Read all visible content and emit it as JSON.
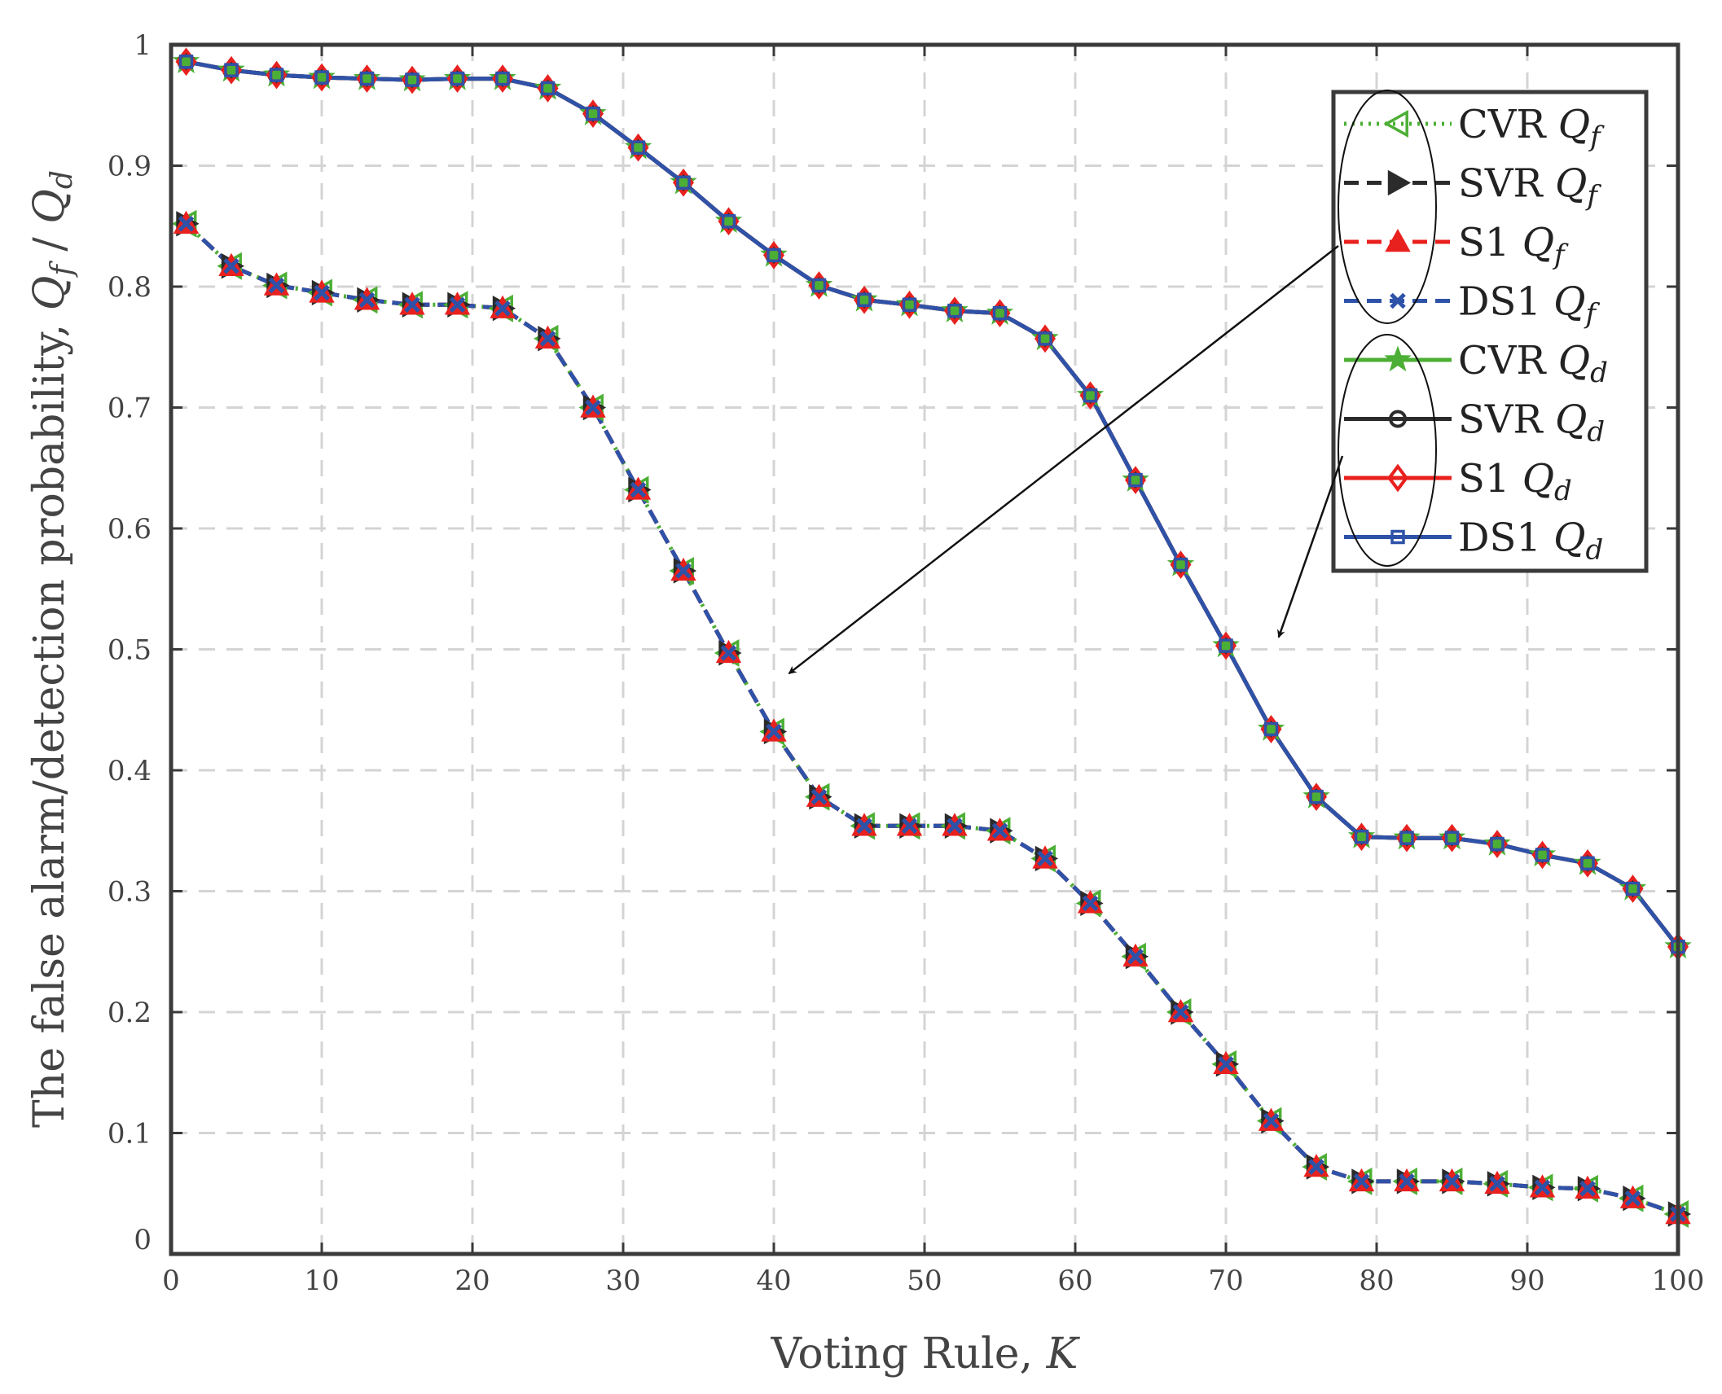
{
  "chart_data": {
    "type": "line",
    "title": "",
    "xlabel": "Voting Rule, ",
    "xlabel_var": "K",
    "ylabel": "The false alarm/detection probability, ",
    "ylabel_var1": "Q",
    "ylabel_sub1": "f",
    "ylabel_sep": " / ",
    "ylabel_var2": "Q",
    "ylabel_sub2": "d",
    "xlim": [
      0,
      100
    ],
    "ylim": [
      0,
      1
    ],
    "xticks": [
      0,
      10,
      20,
      30,
      40,
      50,
      60,
      70,
      80,
      90,
      100
    ],
    "yticks": [
      0,
      0.1,
      0.2,
      0.3,
      0.4,
      0.5,
      0.6,
      0.7,
      0.8,
      0.9,
      1
    ],
    "ytick_labels": [
      "0",
      "0.1",
      "0.2",
      "0.3",
      "0.4",
      "0.5",
      "0.6",
      "0.7",
      "0.8",
      "0.9",
      "1"
    ],
    "grid": true,
    "legend_position": "top-right",
    "x": [
      1,
      4,
      7,
      10,
      13,
      16,
      19,
      22,
      25,
      28,
      31,
      34,
      37,
      40,
      43,
      46,
      49,
      52,
      55,
      58,
      61,
      64,
      67,
      70,
      73,
      76,
      79,
      82,
      85,
      88,
      91,
      94,
      97,
      100
    ],
    "qf_values": [
      0.852,
      0.817,
      0.801,
      0.795,
      0.789,
      0.785,
      0.785,
      0.782,
      0.757,
      0.7,
      0.632,
      0.565,
      0.497,
      0.432,
      0.378,
      0.354,
      0.354,
      0.354,
      0.35,
      0.327,
      0.29,
      0.246,
      0.2,
      0.157,
      0.11,
      0.072,
      0.06,
      0.06,
      0.06,
      0.058,
      0.055,
      0.054,
      0.046,
      0.033
    ],
    "qd_values": [
      0.986,
      0.979,
      0.975,
      0.973,
      0.972,
      0.971,
      0.972,
      0.972,
      0.964,
      0.943,
      0.915,
      0.886,
      0.854,
      0.826,
      0.801,
      0.789,
      0.785,
      0.78,
      0.778,
      0.757,
      0.71,
      0.64,
      0.57,
      0.503,
      0.434,
      0.378,
      0.345,
      0.344,
      0.344,
      0.339,
      0.33,
      0.323,
      0.302,
      0.254
    ],
    "series": [
      {
        "name": "CVR",
        "sub": "f",
        "group": "Qf",
        "color": "#4caf35",
        "dash": "3,7",
        "marker": "triangle-left"
      },
      {
        "name": "SVR",
        "sub": "f",
        "group": "Qf",
        "color": "#2b2b2b",
        "dash": "18,10",
        "marker": "triangle-right"
      },
      {
        "name": "S1",
        "sub": "f",
        "group": "Qf",
        "color": "#e8201e",
        "dash": "18,10",
        "marker": "triangle-up"
      },
      {
        "name": "DS1",
        "sub": "f",
        "group": "Qf",
        "color": "#2e52a8",
        "dash": "18,10",
        "marker": "x"
      },
      {
        "name": "CVR",
        "sub": "d",
        "group": "Qd",
        "color": "#4caf35",
        "dash": "",
        "marker": "star"
      },
      {
        "name": "SVR",
        "sub": "d",
        "group": "Qd",
        "color": "#2b2b2b",
        "dash": "",
        "marker": "circle"
      },
      {
        "name": "S1",
        "sub": "d",
        "group": "Qd",
        "color": "#e8201e",
        "dash": "",
        "marker": "diamond"
      },
      {
        "name": "DS1",
        "sub": "d",
        "group": "Qd",
        "color": "#2e52a8",
        "dash": "",
        "marker": "square"
      }
    ],
    "legend_var": "Q",
    "annotations": [
      {
        "type": "arrow",
        "from": "legend-Qf-ellipse",
        "to": [
          41,
          0.48
        ]
      },
      {
        "type": "arrow",
        "from": "legend-Qd-ellipse",
        "to": [
          73.5,
          0.51
        ]
      }
    ]
  }
}
